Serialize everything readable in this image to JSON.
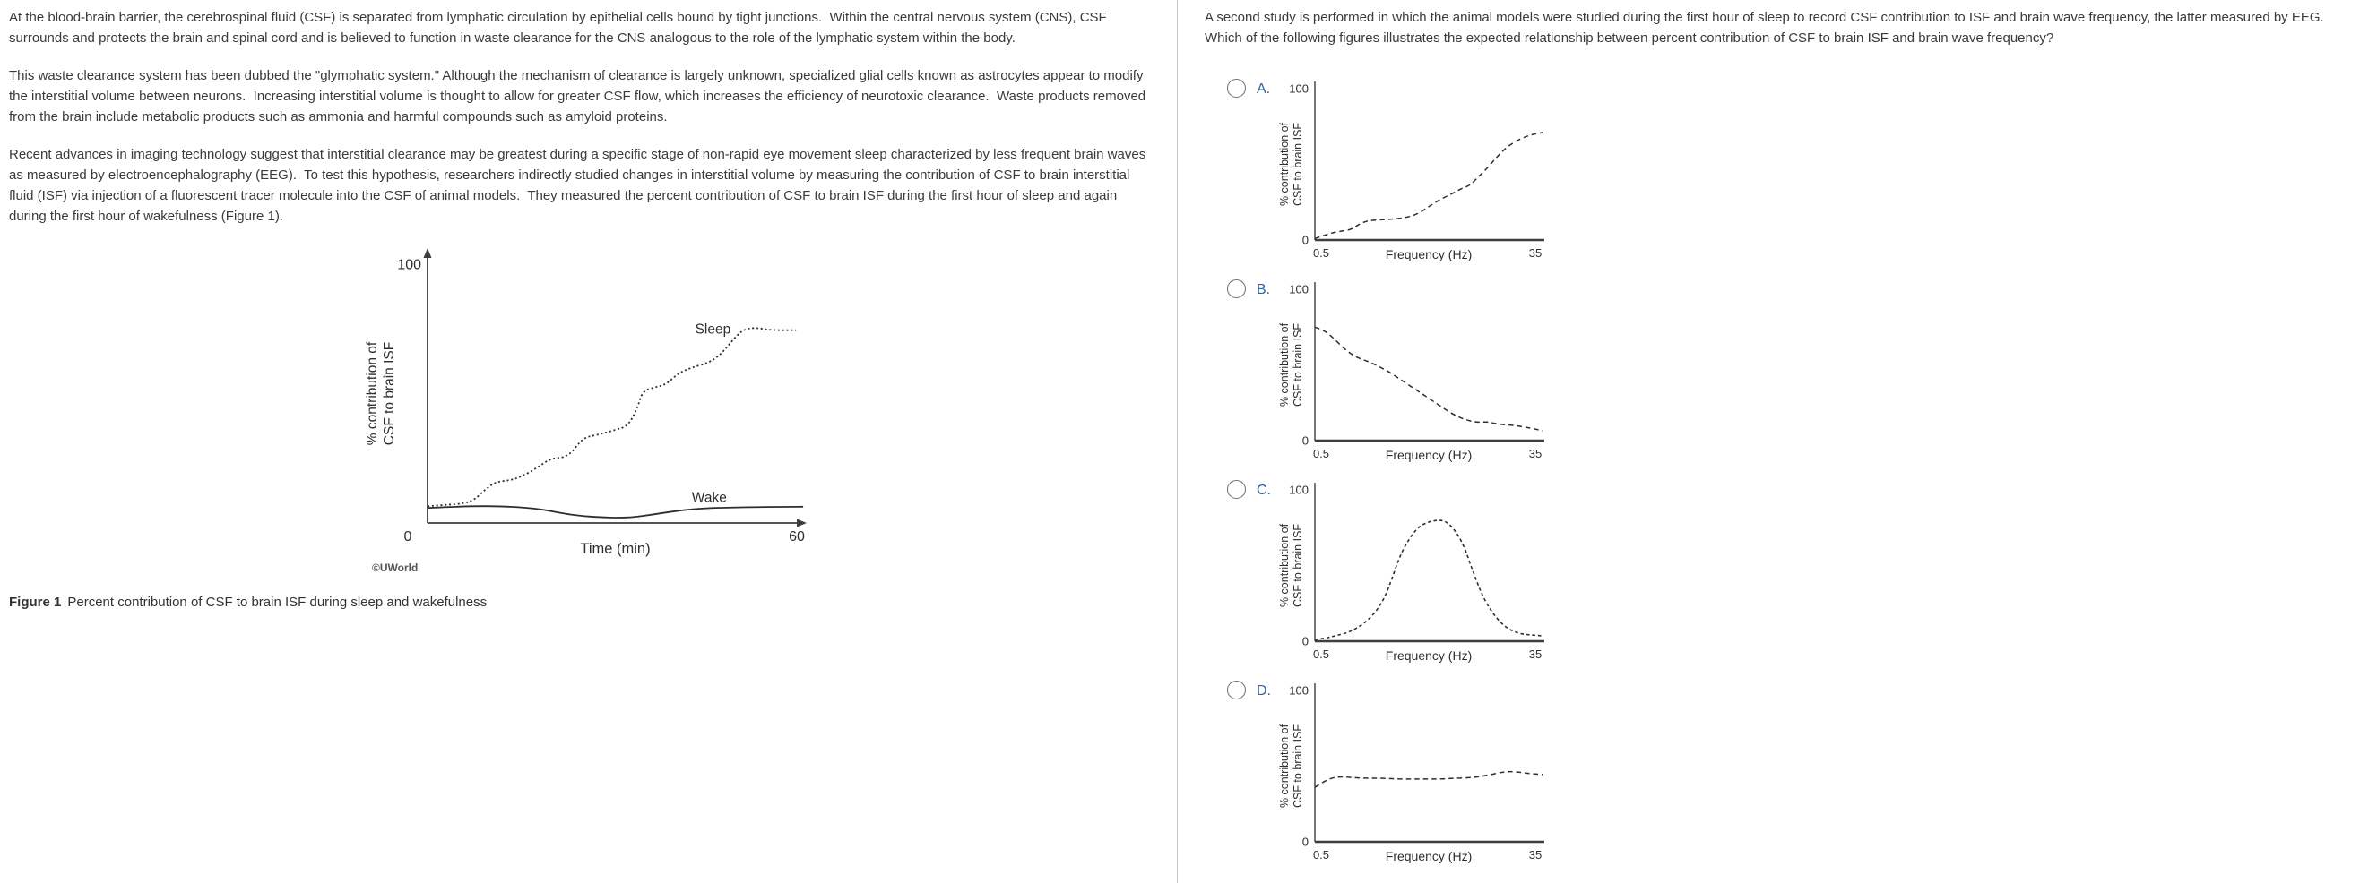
{
  "left_panel": {
    "paragraphs": [
      "At the blood-brain barrier, the cerebrospinal fluid (CSF) is separated from lymphatic circulation by epithelial cells bound by tight junctions.  Within the central nervous system (CNS), CSF surrounds and protects the brain and spinal cord and is believed to function in waste clearance for the CNS analogous to the role of the lymphatic system within the body.",
      "This waste clearance system has been dubbed the \"glymphatic system.\" Although the mechanism of clearance is largely unknown, specialized glial cells known as astrocytes appear to modify the interstitial volume between neurons.  Increasing interstitial volume is thought to allow for greater CSF flow, which increases the efficiency of neurotoxic clearance.  Waste products removed from the brain include metabolic products such as ammonia and harmful compounds such as amyloid proteins.",
      "Recent advances in imaging technology suggest that interstitial clearance may be greatest during a specific stage of non-rapid eye movement sleep characterized by less frequent brain waves as measured by electroencephalography (EEG).  To test this hypothesis, researchers indirectly studied changes in interstitial volume by measuring the contribution of CSF to brain interstitial fluid (ISF) via injection of a fluorescent tracer molecule into the CSF of animal models.  They measured the percent contribution of CSF to brain ISF during the first hour of sleep and again during the first hour of wakefulness (Figure 1)."
    ],
    "figure_caption": {
      "label": "Figure 1",
      "text": "Percent contribution of CSF to brain ISF during sleep and wakefulness"
    }
  },
  "right_panel": {
    "question": "A second study is performed in which the animal models were studied during the first hour of sleep to record CSF contribution to ISF and brain wave frequency, the latter measured by EEG.  Which of the following figures illustrates the expected relationship between percent contribution of CSF to brain ISF and brain wave frequency?",
    "choices": [
      {
        "letter": "A."
      },
      {
        "letter": "B."
      },
      {
        "letter": "C."
      },
      {
        "letter": "D."
      }
    ]
  },
  "colors": {
    "passage_text": "#3a3a3a",
    "choice_letter": "#2c66a0",
    "radio_border": "#6f6f6f",
    "divider": "#c9c9c9",
    "axis": "#3d3d3d",
    "curve": "#2e2e2e",
    "watermark": "#555555"
  },
  "chart_data": [
    {
      "id": "figure1",
      "type": "line",
      "xlabel": "Time (min)",
      "ylabel_lines": [
        "% contribution of",
        "CSF to brain ISF"
      ],
      "xlim": [
        0,
        60
      ],
      "ylim": [
        0,
        100
      ],
      "xticks": [
        {
          "pos": 0,
          "label": "0"
        },
        {
          "pos": 1,
          "label": "60"
        }
      ],
      "yticks": [
        {
          "value": 100,
          "label": "100"
        }
      ],
      "grid": false,
      "legend_position": "inline-labels",
      "watermark": "©UWorld",
      "series": [
        {
          "name": "Sleep",
          "style": "dotted",
          "label_at": {
            "x": 0.79,
            "y": 75
          },
          "points": [
            [
              0,
              6.5
            ],
            [
              0.05,
              7
            ],
            [
              0.1,
              7.5
            ],
            [
              0.13,
              9
            ],
            [
              0.16,
              13
            ],
            [
              0.19,
              16
            ],
            [
              0.23,
              16.5
            ],
            [
              0.26,
              18
            ],
            [
              0.3,
              21
            ],
            [
              0.34,
              25
            ],
            [
              0.39,
              25.5
            ],
            [
              0.43,
              33
            ],
            [
              0.47,
              34
            ],
            [
              0.52,
              36
            ],
            [
              0.555,
              37.5
            ],
            [
              0.58,
              44
            ],
            [
              0.595,
              51
            ],
            [
              0.63,
              52.5
            ],
            [
              0.66,
              53.5
            ],
            [
              0.695,
              58
            ],
            [
              0.73,
              60
            ],
            [
              0.78,
              62
            ],
            [
              0.81,
              65
            ],
            [
              0.835,
              69
            ],
            [
              0.86,
              73
            ],
            [
              0.88,
              75
            ],
            [
              0.91,
              75.5
            ],
            [
              0.95,
              74.5
            ],
            [
              1.02,
              74.5
            ]
          ]
        },
        {
          "name": "Wake",
          "style": "solid",
          "label_at": {
            "x": 0.78,
            "y": 10
          },
          "points": [
            [
              0,
              5.8
            ],
            [
              0.06,
              6.2
            ],
            [
              0.12,
              6.5
            ],
            [
              0.2,
              6.5
            ],
            [
              0.27,
              6
            ],
            [
              0.32,
              5.2
            ],
            [
              0.37,
              3.8
            ],
            [
              0.42,
              2.8
            ],
            [
              0.48,
              2.2
            ],
            [
              0.53,
              2
            ],
            [
              0.57,
              2.3
            ],
            [
              0.62,
              3.2
            ],
            [
              0.67,
              4.3
            ],
            [
              0.72,
              5.2
            ],
            [
              0.78,
              5.8
            ],
            [
              0.85,
              6
            ],
            [
              0.92,
              6.2
            ],
            [
              1.04,
              6.3
            ]
          ]
        }
      ]
    },
    {
      "id": "choice_A",
      "type": "line",
      "xlabel": "Frequency (Hz)",
      "ylabel_lines": [
        "% contribution of",
        "CSF to brain ISF"
      ],
      "xlim": [
        0.5,
        35
      ],
      "ylim": [
        0,
        100
      ],
      "xticks": [
        {
          "pos": 0,
          "label": "0.5"
        },
        {
          "pos": 1,
          "label": "35"
        }
      ],
      "yticks": [
        {
          "value": 100,
          "label": "100"
        },
        {
          "value": 0,
          "label": "0"
        }
      ],
      "grid": false,
      "trend": "increasing",
      "series": [
        {
          "name": "",
          "style": "dashed",
          "points": [
            [
              0,
              1
            ],
            [
              0.04,
              3
            ],
            [
              0.08,
              5
            ],
            [
              0.12,
              6
            ],
            [
              0.16,
              7
            ],
            [
              0.2,
              11
            ],
            [
              0.24,
              13
            ],
            [
              0.3,
              13.5
            ],
            [
              0.36,
              14
            ],
            [
              0.42,
              15.5
            ],
            [
              0.46,
              18
            ],
            [
              0.5,
              22
            ],
            [
              0.54,
              26
            ],
            [
              0.58,
              29
            ],
            [
              0.62,
              32
            ],
            [
              0.65,
              34.5
            ],
            [
              0.68,
              36
            ],
            [
              0.72,
              42
            ],
            [
              0.76,
              48
            ],
            [
              0.8,
              55
            ],
            [
              0.84,
              61
            ],
            [
              0.88,
              65
            ],
            [
              0.92,
              68
            ],
            [
              0.96,
              70
            ],
            [
              1,
              71
            ]
          ]
        }
      ]
    },
    {
      "id": "choice_B",
      "type": "line",
      "xlabel": "Frequency (Hz)",
      "ylabel_lines": [
        "% contribution of",
        "CSF to brain ISF"
      ],
      "xlim": [
        0.5,
        35
      ],
      "ylim": [
        0,
        100
      ],
      "xticks": [
        {
          "pos": 0,
          "label": "0.5"
        },
        {
          "pos": 1,
          "label": "35"
        }
      ],
      "yticks": [
        {
          "value": 100,
          "label": "100"
        },
        {
          "value": 0,
          "label": "0"
        }
      ],
      "grid": false,
      "trend": "decreasing",
      "series": [
        {
          "name": "",
          "style": "dashed",
          "points": [
            [
              0,
              75
            ],
            [
              0.04,
              73
            ],
            [
              0.08,
              68
            ],
            [
              0.12,
              62
            ],
            [
              0.16,
              57
            ],
            [
              0.2,
              54
            ],
            [
              0.24,
              52
            ],
            [
              0.28,
              49
            ],
            [
              0.32,
              46
            ],
            [
              0.36,
              42
            ],
            [
              0.4,
              38
            ],
            [
              0.44,
              34
            ],
            [
              0.48,
              30
            ],
            [
              0.52,
              26
            ],
            [
              0.56,
              22
            ],
            [
              0.6,
              18
            ],
            [
              0.64,
              15
            ],
            [
              0.68,
              13
            ],
            [
              0.72,
              12
            ],
            [
              0.76,
              12.5
            ],
            [
              0.8,
              11
            ],
            [
              0.84,
              10.5
            ],
            [
              0.88,
              10
            ],
            [
              0.92,
              9
            ],
            [
              0.96,
              8
            ],
            [
              1,
              6.5
            ]
          ]
        }
      ]
    },
    {
      "id": "choice_C",
      "type": "line",
      "xlabel": "Frequency (Hz)",
      "ylabel_lines": [
        "% contribution of",
        "CSF to brain ISF"
      ],
      "xlim": [
        0.5,
        35
      ],
      "ylim": [
        0,
        100
      ],
      "xticks": [
        {
          "pos": 0,
          "label": "0.5"
        },
        {
          "pos": 1,
          "label": "35"
        }
      ],
      "yticks": [
        {
          "value": 100,
          "label": "100"
        },
        {
          "value": 0,
          "label": "0"
        }
      ],
      "grid": false,
      "trend": "bell-shaped peak at intermediate frequency",
      "series": [
        {
          "name": "",
          "style": "dashed-short",
          "points": [
            [
              0,
              1
            ],
            [
              0.05,
              2
            ],
            [
              0.1,
              4
            ],
            [
              0.15,
              6
            ],
            [
              0.2,
              10
            ],
            [
              0.24,
              15
            ],
            [
              0.28,
              22
            ],
            [
              0.31,
              30
            ],
            [
              0.34,
              42
            ],
            [
              0.37,
              55
            ],
            [
              0.4,
              64
            ],
            [
              0.43,
              71
            ],
            [
              0.46,
              76
            ],
            [
              0.5,
              79
            ],
            [
              0.54,
              80
            ],
            [
              0.57,
              79.5
            ],
            [
              0.6,
              76
            ],
            [
              0.63,
              70
            ],
            [
              0.66,
              61
            ],
            [
              0.68,
              52
            ],
            [
              0.7,
              44
            ],
            [
              0.72,
              36
            ],
            [
              0.74,
              29
            ],
            [
              0.77,
              21
            ],
            [
              0.8,
              15
            ],
            [
              0.84,
              9
            ],
            [
              0.88,
              6
            ],
            [
              0.92,
              4.5
            ],
            [
              0.96,
              4
            ],
            [
              1,
              3.5
            ]
          ]
        }
      ]
    },
    {
      "id": "choice_D",
      "type": "line",
      "xlabel": "Frequency (Hz)",
      "ylabel_lines": [
        "% contribution of",
        "CSF to brain ISF"
      ],
      "xlim": [
        0.5,
        35
      ],
      "ylim": [
        0,
        100
      ],
      "xticks": [
        {
          "pos": 0,
          "label": "0.5"
        },
        {
          "pos": 1,
          "label": "35"
        }
      ],
      "yticks": [
        {
          "value": 100,
          "label": "100"
        },
        {
          "value": 0,
          "label": "0"
        }
      ],
      "grid": false,
      "trend": "constant",
      "series": [
        {
          "name": "",
          "style": "dashed",
          "points": [
            [
              0,
              36
            ],
            [
              0.04,
              40
            ],
            [
              0.08,
              42.5
            ],
            [
              0.12,
              43
            ],
            [
              0.16,
              42.5
            ],
            [
              0.22,
              42
            ],
            [
              0.3,
              42
            ],
            [
              0.38,
              41.5
            ],
            [
              0.46,
              41.5
            ],
            [
              0.54,
              41.5
            ],
            [
              0.62,
              42
            ],
            [
              0.7,
              42.5
            ],
            [
              0.76,
              44
            ],
            [
              0.82,
              46
            ],
            [
              0.86,
              46.5
            ],
            [
              0.9,
              46
            ],
            [
              0.95,
              45
            ],
            [
              1,
              44.5
            ]
          ]
        }
      ]
    }
  ]
}
